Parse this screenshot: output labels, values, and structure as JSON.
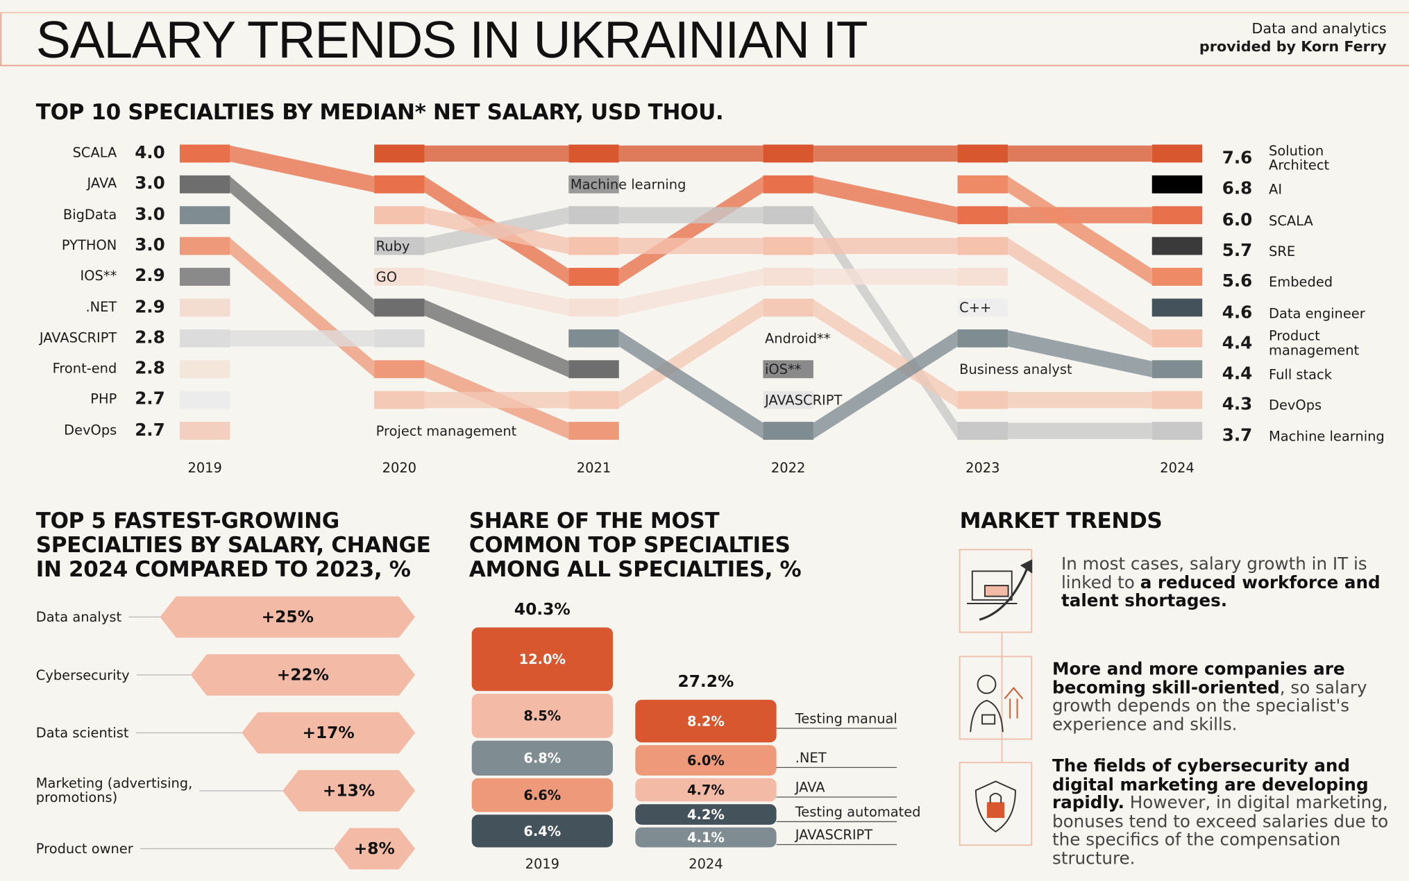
{
  "header": {
    "title": "SALARY TRENDS IN UKRAINIAN IT",
    "credit_line1": "Data and analytics",
    "credit_line2": "provided by Korn Ferry"
  },
  "chart_data": [
    {
      "type": "bump",
      "title": "TOP 10 SPECIALTIES BY MEDIAN* NET SALARY, USD THOU.",
      "categories": [
        "2019",
        "2020",
        "2021",
        "2022",
        "2023",
        "2024"
      ],
      "start_names": [
        "SCALA",
        "JAVA",
        "BigData",
        "PYTHON",
        "IOS**",
        ".NET",
        "JAVASCRIPT",
        "Front-end",
        "PHP",
        "DevOps"
      ],
      "start_values": [
        4.0,
        3.0,
        3.0,
        3.0,
        2.9,
        2.9,
        2.8,
        2.8,
        2.7,
        2.7
      ],
      "start_value_labels": [
        "4.0",
        "3.0",
        "3.0",
        "3.0",
        "2.9",
        "2.9",
        "2.8",
        "2.8",
        "2.7",
        "2.7"
      ],
      "end_names": [
        "Solution\nArchitect",
        "AI",
        "SCALA",
        "SRE",
        "Embeded",
        "Data engineer",
        "Product\nmanagement",
        "Full stack",
        "DevOps",
        "Machine learning"
      ],
      "end_values": [
        7.6,
        6.8,
        6.0,
        5.7,
        5.6,
        4.6,
        4.4,
        4.4,
        4.3,
        3.7
      ],
      "end_value_labels": [
        "7.6",
        "6.8",
        "6.0",
        "5.7",
        "5.6",
        "4.6",
        "4.4",
        "4.4",
        "4.3",
        "3.7"
      ],
      "ribbons": [
        {
          "color": "#d9572f",
          "ranks": [
            null,
            1,
            1,
            1,
            1,
            1
          ]
        },
        {
          "color": "#e8704a",
          "ranks": [
            1,
            2,
            5,
            2,
            3,
            3
          ]
        },
        {
          "color": "#6e6e6e",
          "ranks": [
            2,
            6,
            8,
            null,
            null,
            null
          ]
        },
        {
          "color": "#7f8c92",
          "ranks": [
            3,
            null,
            null,
            null,
            null,
            null
          ]
        },
        {
          "color": "#ee9a7a",
          "ranks": [
            4,
            8,
            10,
            null,
            null,
            null
          ]
        },
        {
          "color": "#8a8a8a",
          "ranks": [
            5,
            null,
            null,
            null,
            null,
            null
          ]
        },
        {
          "color": "#f3dcd0",
          "ranks": [
            6,
            null,
            null,
            null,
            null,
            null
          ]
        },
        {
          "color": "#dcdcdc",
          "ranks": [
            7,
            7,
            null,
            null,
            null,
            null
          ]
        },
        {
          "color": "#f5e6dc",
          "ranks": [
            8,
            null,
            null,
            null,
            null,
            null
          ]
        },
        {
          "color": "#ececec",
          "ranks": [
            9,
            null,
            null,
            null,
            null,
            null
          ]
        },
        {
          "color": "#f3cfc0",
          "ranks": [
            10,
            null,
            null,
            null,
            null,
            null
          ]
        },
        {
          "color": "#c8c8c8",
          "ranks": [
            null,
            4,
            3,
            3,
            10,
            10
          ]
        },
        {
          "color": "#f5c2ae",
          "ranks": [
            null,
            3,
            4,
            4,
            4,
            7
          ]
        },
        {
          "color": "#f6e0d6",
          "ranks": [
            null,
            5,
            6,
            5,
            5,
            null
          ]
        },
        {
          "color": "#f4c9b6",
          "ranks": [
            null,
            9,
            9,
            6,
            9,
            9
          ]
        },
        {
          "color": "#7f8c92",
          "ranks": [
            null,
            null,
            7,
            10,
            7,
            8
          ]
        },
        {
          "color": "#ee8a66",
          "ranks": [
            null,
            null,
            null,
            null,
            2,
            5
          ]
        },
        {
          "color": "#9a9a9a",
          "ranks": [
            null,
            null,
            2,
            null,
            null,
            null
          ]
        },
        {
          "color": "#8a8a8a",
          "ranks": [
            null,
            null,
            null,
            8,
            null,
            null
          ]
        },
        {
          "color": "#e6e6e6",
          "ranks": [
            null,
            null,
            null,
            9,
            null,
            null
          ]
        },
        {
          "color": "#eeeeee",
          "ranks": [
            null,
            null,
            null,
            null,
            6,
            null
          ]
        },
        {
          "color": "#000000",
          "ranks": [
            null,
            null,
            null,
            null,
            null,
            2
          ]
        },
        {
          "color": "#3a3a3a",
          "ranks": [
            null,
            null,
            null,
            null,
            null,
            4
          ]
        },
        {
          "color": "#44525c",
          "ranks": [
            null,
            null,
            null,
            null,
            null,
            6
          ]
        }
      ],
      "annotations": [
        {
          "text": "Ruby",
          "year": "2020",
          "rank": 4
        },
        {
          "text": "GO",
          "year": "2020",
          "rank": 5
        },
        {
          "text": "Project management",
          "year": "2020",
          "rank": 10
        },
        {
          "text": "Machine learning",
          "year": "2021",
          "rank": 2
        },
        {
          "text": "Android**",
          "year": "2022",
          "rank": 7
        },
        {
          "text": "iOS**",
          "year": "2022",
          "rank": 8
        },
        {
          "text": "JAVASCRIPT",
          "year": "2022",
          "rank": 9
        },
        {
          "text": "C++",
          "year": "2023",
          "rank": 6
        },
        {
          "text": "Business analyst",
          "year": "2023",
          "rank": 8
        }
      ]
    },
    {
      "type": "hbar",
      "title": "TOP 5 FASTEST-GROWING\nSPECIALTIES BY SALARY, CHANGE\nIN 2024 COMPARED TO 2023, %",
      "categories": [
        "Data analyst",
        "Cybersecurity",
        "Data scientist",
        "Marketing (advertising,\npromotions)",
        "Product owner"
      ],
      "values": [
        25,
        22,
        17,
        13,
        8
      ],
      "value_labels": [
        "+25%",
        "+22%",
        "+17%",
        "+13%",
        "+8%"
      ],
      "color": "#f3bba6"
    },
    {
      "type": "stacked",
      "title": "SHARE OF THE MOST\nCOMMON TOP SPECIALTIES\nAMONG ALL SPECIALTIES, %",
      "categories": [
        "2019",
        "2024"
      ],
      "totals": [
        40.3,
        27.2
      ],
      "total_labels": [
        "40.3%",
        "27.2%"
      ],
      "stacks": [
        {
          "values": [
            12.0,
            8.5,
            6.8,
            6.6,
            6.4
          ],
          "value_labels": [
            "12.0%",
            "8.5%",
            "6.8%",
            "6.6%",
            "6.4%"
          ],
          "colors": [
            "#d9572f",
            "#f3bba6",
            "#7f8c92",
            "#ee9a7a",
            "#44525c"
          ]
        },
        {
          "values": [
            8.2,
            6.0,
            4.7,
            4.2,
            4.1
          ],
          "value_labels": [
            "8.2%",
            "6.0%",
            "4.7%",
            "4.2%",
            "4.1%"
          ],
          "colors": [
            "#d9572f",
            "#ee9a7a",
            "#f3bba6",
            "#44525c",
            "#7f8c92"
          ],
          "names": [
            "Testing manual",
            ".NET",
            "JAVA",
            "Testing automated",
            "JAVASCRIPT"
          ]
        }
      ]
    }
  ],
  "market_trends": {
    "title": "MARKET TRENDS",
    "items": [
      {
        "parts": [
          {
            "text": "In most cases, salary growth in IT is linked to ",
            "bold": false
          },
          {
            "text": "a reduced workforce and talent shortages.",
            "bold": true
          }
        ]
      },
      {
        "parts": [
          {
            "text": "More and more companies are becoming skill-oriented",
            "bold": true
          },
          {
            "text": ", so salary growth depends on the specialist's experience and skills.",
            "bold": false
          }
        ]
      },
      {
        "parts": [
          {
            "text": "The fields of cybersecurity and digital marketing are developing rapidly.",
            "bold": true
          },
          {
            "text": " However, in digital marketing, bonuses tend to exceed salaries due to the specifics of the compensation structure.",
            "bold": false
          }
        ]
      }
    ]
  }
}
